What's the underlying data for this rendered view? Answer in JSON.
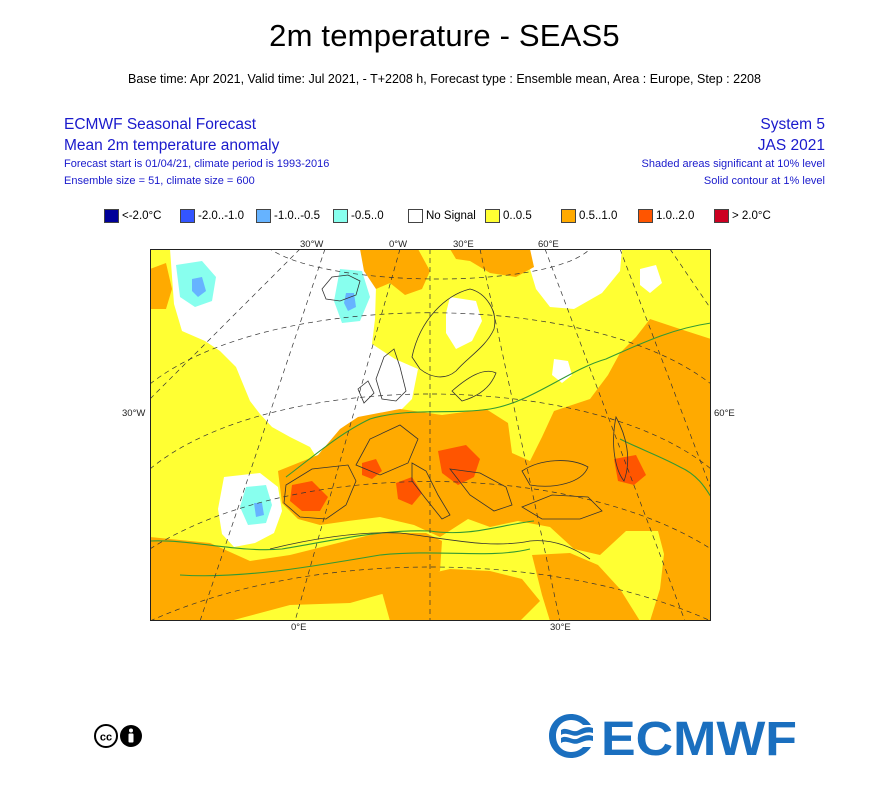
{
  "title": "2m temperature - SEAS5",
  "subtitle": "Base time: Apr 2021, Valid time: Jul 2021, - T+2208 h, Forecast type : Ensemble mean, Area : Europe, Step : 2208",
  "header_left": {
    "line1": "ECMWF Seasonal Forecast",
    "line2": "Mean 2m temperature anomaly",
    "line3": "Forecast start is 01/04/21, climate period is 1993-2016",
    "line4": "Ensemble size = 51, climate size = 600"
  },
  "header_right": {
    "line1": "System 5",
    "line2": "JAS 2021",
    "line3": "Shaded areas significant at 10% level",
    "line4": "Solid contour at 1% level"
  },
  "legend": [
    {
      "label": "<-2.0°C",
      "color": "#000099"
    },
    {
      "label": "-2.0..-1.0",
      "color": "#3355ff"
    },
    {
      "label": "-1.0..-0.5",
      "color": "#66b3ff"
    },
    {
      "label": "-0.5..0",
      "color": "#88ffee"
    },
    {
      "label": "No Signal",
      "color": "#ffffff"
    },
    {
      "label": "0..0.5",
      "color": "#ffff33"
    },
    {
      "label": "0.5..1.0",
      "color": "#ffaa00"
    },
    {
      "label": "1.0..2.0",
      "color": "#ff5500"
    },
    {
      "label": "> 2.0°C",
      "color": "#cc0022"
    }
  ],
  "map_labels": {
    "top": [
      "30°W",
      "0°W",
      "30°E",
      "60°E"
    ],
    "left": "30°W",
    "right": "60°E",
    "bottom": [
      "0°E",
      "30°E"
    ]
  },
  "logo_text": "ECMWF",
  "brand_color": "#1a6fbf"
}
